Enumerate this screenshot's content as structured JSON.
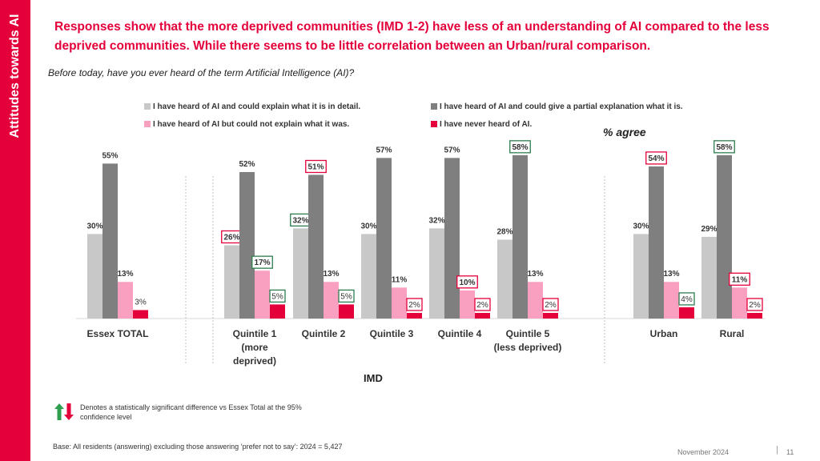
{
  "sidebar": {
    "label": "Attitudes towards AI"
  },
  "headline": "Responses show that the more deprived communities (IMD 1-2) have less of an understanding of AI compared to the less deprived communities. While there seems to be little correlation between an Urban/rural comparison.",
  "question": "Before today, have you ever heard of the term Artificial Intelligence (AI)?",
  "agree_label": "% agree",
  "axis_group_label": "IMD",
  "note": "Denotes a statistically significant difference vs Essex Total at the 95% confidence level",
  "base": "Base: All residents (answering) excluding those answering ‘prefer not to say’: 2024 = 5,427",
  "footer": {
    "date": "November 2024",
    "separator": "|",
    "page": "11"
  },
  "colors": {
    "accent": "#e4003b",
    "sig_up": "#2e7d4f",
    "sig_down": "#e4003b"
  },
  "chart_data": {
    "type": "bar",
    "title": "Before today, have you ever heard of the term Artificial Intelligence (AI)?",
    "ylabel": "% agree",
    "ylim": [
      0,
      60
    ],
    "categories": [
      "Essex TOTAL",
      "Quintile 1 (more deprived)",
      "Quintile 2",
      "Quintile 3",
      "Quintile 4",
      "Quintile 5 (less deprived)",
      "Urban",
      "Rural"
    ],
    "category_lines": [
      [
        "Essex TOTAL"
      ],
      [
        "Quintile 1",
        "(more",
        "deprived)"
      ],
      [
        "Quintile 2"
      ],
      [
        "Quintile 3"
      ],
      [
        "Quintile 4"
      ],
      [
        "Quintile 5",
        "(less deprived)"
      ],
      [
        "Urban"
      ],
      [
        "Rural"
      ]
    ],
    "series": [
      {
        "name": "I have heard of AI and could explain what it is in detail.",
        "color": "#c8c8c8",
        "values": [
          30,
          26,
          32,
          30,
          32,
          28,
          30,
          29
        ],
        "sig": [
          null,
          "down",
          "up",
          null,
          null,
          null,
          null,
          null
        ]
      },
      {
        "name": "I have heard of AI and could give a partial explanation what it is.",
        "color": "#7f7f7f",
        "values": [
          55,
          52,
          51,
          57,
          57,
          58,
          54,
          58
        ],
        "sig": [
          null,
          null,
          "down",
          null,
          null,
          "up",
          "down",
          "up"
        ]
      },
      {
        "name": "I have heard of AI but could not explain what it was.",
        "color": "#f99fbf",
        "values": [
          13,
          17,
          13,
          11,
          10,
          13,
          13,
          11
        ],
        "sig": [
          null,
          "up",
          null,
          null,
          "down",
          null,
          null,
          "down"
        ]
      },
      {
        "name": "I have never heard of AI.",
        "color": "#e4003b",
        "values": [
          3,
          5,
          5,
          2,
          2,
          2,
          4,
          2
        ],
        "sig": [
          null,
          "up",
          "up",
          "down",
          "down",
          "down",
          "up",
          "down"
        ]
      }
    ]
  }
}
